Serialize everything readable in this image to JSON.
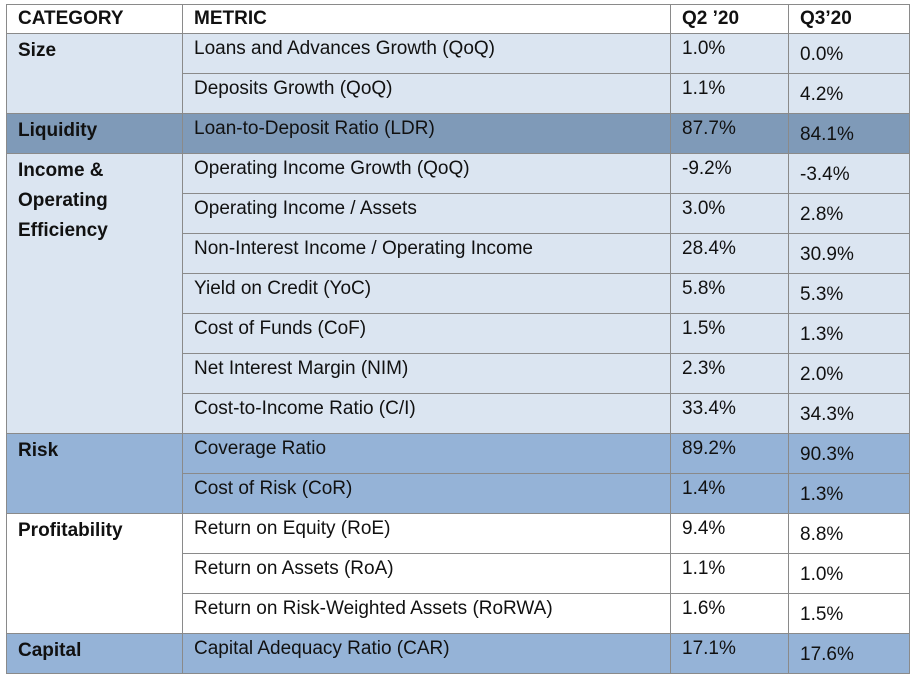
{
  "table": {
    "headers": [
      "CATEGORY",
      "METRIC",
      "Q2 ’20",
      "Q3’20"
    ],
    "groups": [
      {
        "category": "Size",
        "rows": [
          {
            "metric": "Loans and Advances Growth (QoQ)",
            "q2": "1.0%",
            "q3": "0.0%"
          },
          {
            "metric": "Deposits Growth (QoQ)",
            "q2": "1.1%",
            "q3": "4.2%"
          }
        ]
      },
      {
        "category": "Liquidity",
        "rows": [
          {
            "metric": "Loan-to-Deposit Ratio (LDR)",
            "q2": "87.7%",
            "q3": "84.1%"
          }
        ]
      },
      {
        "category": "Income & Operating Efficiency",
        "rows": [
          {
            "metric": "Operating Income Growth (QoQ)",
            "q2": "-9.2%",
            "q3": "-3.4%"
          },
          {
            "metric": "Operating Income / Assets",
            "q2": "3.0%",
            "q3": "2.8%"
          },
          {
            "metric": "Non-Interest Income / Operating Income",
            "q2": "28.4%",
            "q3": "30.9%"
          },
          {
            "metric": "Yield on Credit (YoC)",
            "q2": "5.8%",
            "q3": "5.3%"
          },
          {
            "metric": "Cost of Funds (CoF)",
            "q2": "1.5%",
            "q3": "1.3%"
          },
          {
            "metric": "Net Interest Margin (NIM)",
            "q2": "2.3%",
            "q3": "2.0%"
          },
          {
            "metric": "Cost-to-Income Ratio (C/I)",
            "q2": "33.4%",
            "q3": "34.3%"
          }
        ]
      },
      {
        "category": "Risk",
        "rows": [
          {
            "metric": "Coverage Ratio",
            "q2": "89.2%",
            "q3": "90.3%"
          },
          {
            "metric": "Cost of Risk (CoR)",
            "q2": "1.4%",
            "q3": "1.3%"
          }
        ]
      },
      {
        "category": "Profitability",
        "rows": [
          {
            "metric": "Return on Equity (RoE)",
            "q2": "9.4%",
            "q3": "8.8%"
          },
          {
            "metric": "Return on Assets (RoA)",
            "q2": "1.1%",
            "q3": "1.0%"
          },
          {
            "metric": "Return on Risk-Weighted Assets (RoRWA)",
            "q2": "1.6%",
            "q3": "1.5%"
          }
        ]
      },
      {
        "category": "Capital",
        "rows": [
          {
            "metric": "Capital Adequacy Ratio (CAR)",
            "q2": "17.1%",
            "q3": "17.6%"
          }
        ]
      }
    ]
  },
  "colors": {
    "light_band": "#dbe5f1",
    "mid_band": "#95b3d7",
    "dark_band": "#7f9ab8",
    "border": "#8a8a8a",
    "spellcheck": "#d62222"
  }
}
